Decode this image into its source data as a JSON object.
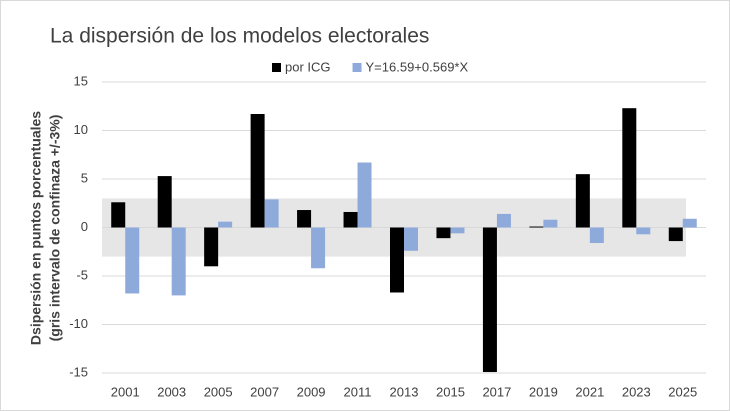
{
  "chart_data": {
    "type": "bar",
    "title": "La dispersión de los modelos electorales",
    "ylabel": [
      "Dsipersión  en puntos porcentuales",
      "(gris  intervalo de confinaza +/-3%)"
    ],
    "categories": [
      "2001",
      "2003",
      "2005",
      "2007",
      "2009",
      "2011",
      "2013",
      "2015",
      "2017",
      "2019",
      "2021",
      "2023",
      "2025"
    ],
    "series": [
      {
        "name": "por ICG",
        "color": "#000000",
        "values": [
          2.6,
          5.3,
          -4.0,
          11.7,
          1.8,
          1.6,
          -6.7,
          -1.1,
          -14.9,
          0.1,
          5.5,
          12.3,
          -1.4
        ]
      },
      {
        "name": "Y=16.59+0.569*X",
        "color": "#8eaadb",
        "values": [
          -6.8,
          -7.0,
          0.6,
          2.9,
          -4.2,
          6.7,
          -2.4,
          -0.6,
          1.4,
          0.8,
          -1.6,
          -0.7,
          0.9
        ]
      }
    ],
    "band": {
      "from": -3,
      "to": 3,
      "color": "#e7e6e6"
    },
    "ylim": [
      -15,
      15
    ],
    "yticks": [
      -15,
      -10,
      -5,
      0,
      5,
      10,
      15
    ],
    "grid": true,
    "legend": "top"
  }
}
